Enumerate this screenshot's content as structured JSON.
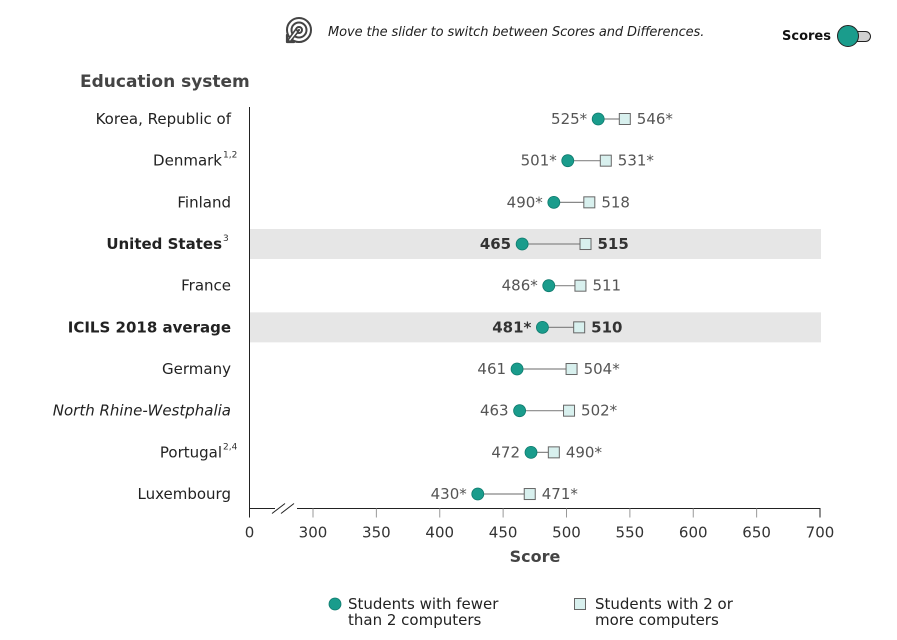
{
  "header": {
    "hint_icon": "touch-target-icon",
    "hint_text": "Move the slider to switch between Scores and Differences.",
    "toggle_label": "Scores",
    "toggle_state": "scores"
  },
  "colors": {
    "circle_fill": "#1a9c8c",
    "square_fill": "#d8f0ee",
    "highlight_row": "#e6e6e6",
    "connector": "#888888"
  },
  "chart_data": {
    "type": "dot-range",
    "title": "",
    "ycolumn_title": "Education system",
    "xlabel": "Score",
    "xlim": [
      300,
      700
    ],
    "axis_break": true,
    "x_ticks": [
      "0",
      "300",
      "350",
      "400",
      "450",
      "500",
      "550",
      "600",
      "650",
      "700"
    ],
    "legend_position": "bottom",
    "legend": [
      {
        "marker": "circle",
        "label_line1": "Students with fewer",
        "label_line2": "than 2 computers"
      },
      {
        "marker": "square",
        "label_line1": "Students with 2 or",
        "label_line2": "more computers"
      }
    ],
    "rows": [
      {
        "name": "Korea, Republic of",
        "sup": "",
        "style": "normal",
        "highlight": false,
        "fewer": 525,
        "fewer_label": "525*",
        "more": 546,
        "more_label": "546*"
      },
      {
        "name": "Denmark",
        "sup": "1,2",
        "style": "normal",
        "highlight": false,
        "fewer": 501,
        "fewer_label": "501*",
        "more": 531,
        "more_label": "531*"
      },
      {
        "name": "Finland",
        "sup": "",
        "style": "normal",
        "highlight": false,
        "fewer": 490,
        "fewer_label": "490*",
        "more": 518,
        "more_label": "518"
      },
      {
        "name": "United States",
        "sup": "3",
        "style": "bold",
        "highlight": true,
        "fewer": 465,
        "fewer_label": "465",
        "more": 515,
        "more_label": "515"
      },
      {
        "name": "France",
        "sup": "",
        "style": "normal",
        "highlight": false,
        "fewer": 486,
        "fewer_label": "486*",
        "more": 511,
        "more_label": "511"
      },
      {
        "name": "ICILS 2018 average",
        "sup": "",
        "style": "bold",
        "highlight": true,
        "fewer": 481,
        "fewer_label": "481*",
        "more": 510,
        "more_label": "510"
      },
      {
        "name": "Germany",
        "sup": "",
        "style": "normal",
        "highlight": false,
        "fewer": 461,
        "fewer_label": "461",
        "more": 504,
        "more_label": "504*"
      },
      {
        "name": "North Rhine-Westphalia",
        "sup": "",
        "style": "italic",
        "highlight": false,
        "fewer": 463,
        "fewer_label": "463",
        "more": 502,
        "more_label": "502*"
      },
      {
        "name": "Portugal",
        "sup": "2,4",
        "style": "normal",
        "highlight": false,
        "fewer": 472,
        "fewer_label": "472",
        "more": 490,
        "more_label": "490*"
      },
      {
        "name": "Luxembourg",
        "sup": "",
        "style": "normal",
        "highlight": false,
        "fewer": 430,
        "fewer_label": "430*",
        "more": 471,
        "more_label": "471*"
      }
    ]
  }
}
